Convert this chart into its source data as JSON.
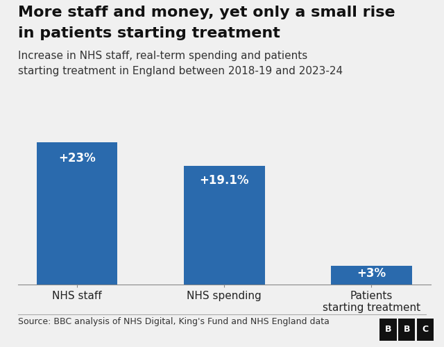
{
  "title_line1": "More staff and money, yet only a small rise",
  "title_line2": "in patients starting treatment",
  "subtitle_line1": "Increase in NHS staff, real-term spending and patients",
  "subtitle_line2": "starting treatment in England between 2018-19 and 2023-24",
  "categories": [
    "NHS staff",
    "NHS spending",
    "Patients\nstarting treatment"
  ],
  "values": [
    23,
    19.1,
    3
  ],
  "labels": [
    "+23%",
    "+19.1%",
    "+3%"
  ],
  "bar_color": "#2a6aad",
  "background_color": "#f0f0f0",
  "source_text": "Source: BBC analysis of NHS Digital, King's Fund and NHS England data",
  "ylim": [
    0,
    28
  ],
  "title_fontsize": 16,
  "subtitle_fontsize": 11,
  "label_fontsize": 12,
  "xlabel_fontsize": 11,
  "source_fontsize": 9
}
